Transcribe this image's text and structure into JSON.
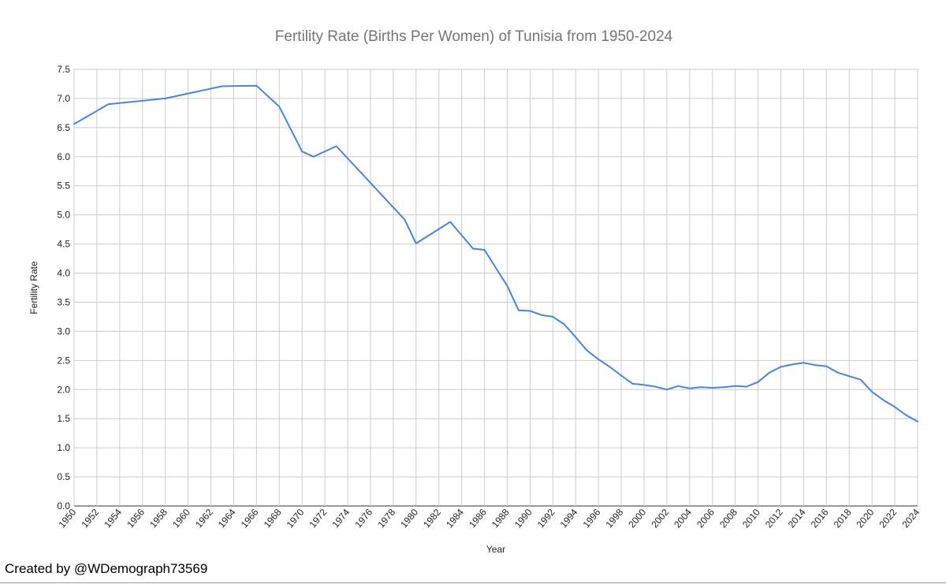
{
  "chart_data": {
    "type": "line",
    "title": "Fertility Rate (Births Per Women) of Tunisia from 1950-2024",
    "xlabel": "Year",
    "ylabel": "Fertility Rate",
    "xlim": [
      1950,
      2024
    ],
    "ylim": [
      0,
      7.5
    ],
    "x_ticks": [
      "1950",
      "1952",
      "1954",
      "1956",
      "1958",
      "1960",
      "1962",
      "1964",
      "1966",
      "1968",
      "1970",
      "1972",
      "1974",
      "1976",
      "1978",
      "1980",
      "1982",
      "1984",
      "1986",
      "1988",
      "1990",
      "1992",
      "1994",
      "1996",
      "1998",
      "2000",
      "2002",
      "2004",
      "2006",
      "2008",
      "2010",
      "2012",
      "2014",
      "2016",
      "2018",
      "2020",
      "2022",
      "2024"
    ],
    "y_ticks": [
      "0.0",
      "0.5",
      "1.0",
      "1.5",
      "2.0",
      "2.5",
      "3.0",
      "3.5",
      "4.0",
      "4.5",
      "5.0",
      "5.5",
      "6.0",
      "6.5",
      "7.0",
      "7.5"
    ],
    "grid": true,
    "color": "#4a86d8",
    "series": [
      {
        "x": [
          1950,
          1953,
          1958,
          1963,
          1966,
          1968,
          1970,
          1971,
          1973,
          1979,
          1980,
          1983,
          1985,
          1986,
          1988,
          1989,
          1990,
          1991,
          1992,
          1993,
          1994,
          1995,
          1996,
          1997,
          1998,
          1999,
          2000,
          2001,
          2002,
          2003,
          2004,
          2005,
          2006,
          2007,
          2008,
          2009,
          2010,
          2011,
          2012,
          2013,
          2014,
          2015,
          2016,
          2017,
          2018,
          2019,
          2020,
          2021,
          2022,
          2023,
          2024
        ],
        "values": [
          6.56,
          6.9,
          7.0,
          7.21,
          7.22,
          6.86,
          6.09,
          6.0,
          6.18,
          4.92,
          4.51,
          4.88,
          4.42,
          4.4,
          3.78,
          3.36,
          3.35,
          3.28,
          3.25,
          3.12,
          2.9,
          2.67,
          2.52,
          2.39,
          2.24,
          2.1,
          2.08,
          2.05,
          2.0,
          2.06,
          2.02,
          2.04,
          2.03,
          2.04,
          2.06,
          2.05,
          2.13,
          2.29,
          2.39,
          2.43,
          2.46,
          2.42,
          2.4,
          2.29,
          2.23,
          2.17,
          1.96,
          1.82,
          1.7,
          1.56,
          1.45
        ]
      }
    ]
  },
  "footer": {
    "credit": "Created by @WDemograph73569"
  }
}
